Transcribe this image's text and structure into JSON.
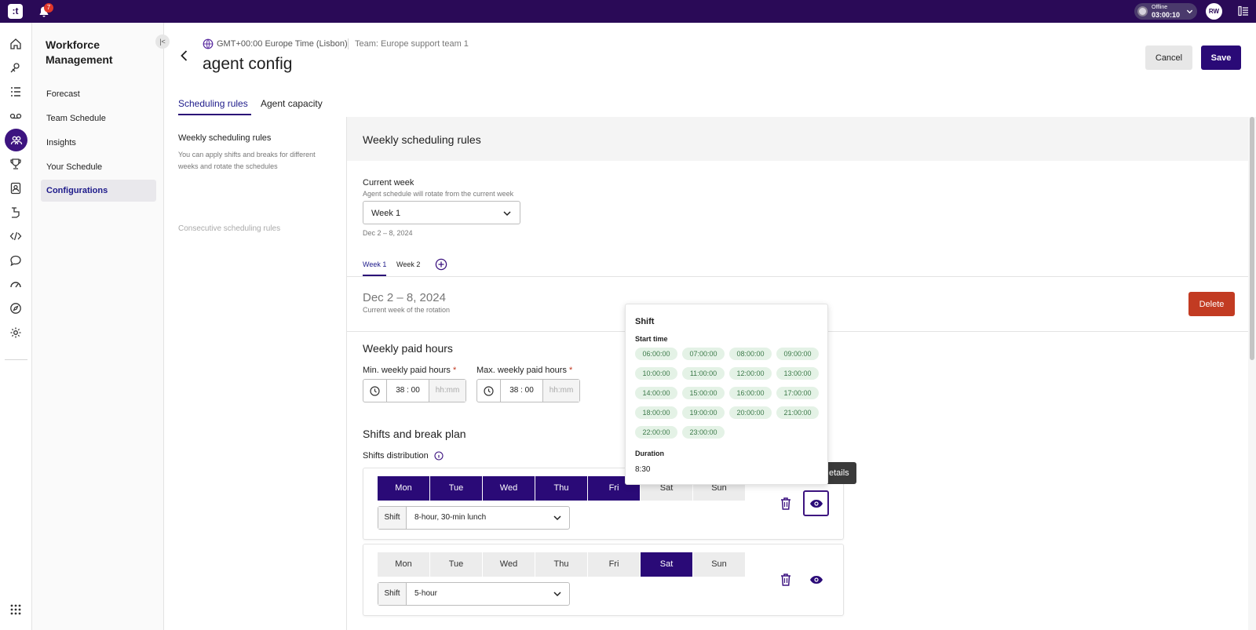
{
  "topbar": {
    "logo_text": ":t",
    "notification_count": "7",
    "status_label": "Offline",
    "status_time": "03:00:10",
    "user_initials": "RW"
  },
  "rail": {
    "icons": [
      "home-icon",
      "routing-icon",
      "list-icon",
      "voicemail-icon",
      "workforce-icon",
      "trophy-icon",
      "contacts-icon",
      "flow-icon",
      "code-icon",
      "chat-icon",
      "dashboard-icon",
      "compass-icon",
      "settings-icon"
    ],
    "active": "workforce-icon"
  },
  "sidebar": {
    "title": "Workforce Management",
    "collapse_glyph": "|<",
    "items": [
      {
        "label": "Forecast"
      },
      {
        "label": "Team Schedule"
      },
      {
        "label": "Insights"
      },
      {
        "label": "Your Schedule"
      },
      {
        "label": "Configurations"
      }
    ],
    "active_item": "Configurations"
  },
  "header": {
    "timezone": "GMT+00:00 Europe Time (Lisbon)",
    "team": "Team: Europe support team 1",
    "title": "agent config",
    "cancel_label": "Cancel",
    "save_label": "Save"
  },
  "tabs": [
    {
      "label": "Scheduling rules",
      "active": true
    },
    {
      "label": "Agent capacity",
      "active": false
    }
  ],
  "left_panel": {
    "weekly_title": "Weekly scheduling rules",
    "weekly_desc": "You can apply shifts and breaks for different weeks and rotate the schedules",
    "consecutive_title": "Consecutive scheduling rules"
  },
  "main": {
    "section_title": "Weekly scheduling rules",
    "current_week": {
      "label": "Current week",
      "sub": "Agent schedule will rotate from the current week",
      "selected": "Week 1",
      "dates": "Dec 2 – 8, 2024"
    },
    "week_tabs": [
      {
        "label": "Week 1",
        "active": true
      },
      {
        "label": "Week 2",
        "active": false
      }
    ],
    "rotation": {
      "title": "Dec 2 – 8, 2024",
      "sub": "Current week of the rotation",
      "delete_label": "Delete"
    },
    "paid_hours": {
      "title": "Weekly paid hours",
      "min_label": "Min. weekly paid hours",
      "min_value": "38 : 00",
      "max_label": "Max. weekly paid hours",
      "max_value": "38 : 00",
      "placeholder": "hh:mm",
      "required_mark": "*"
    },
    "shifts": {
      "title": "Shifts and break plan",
      "distribution_label": "Shifts distribution",
      "shift_field_label": "Shift",
      "cards": [
        {
          "days": [
            {
              "label": "Mon",
              "on": true
            },
            {
              "label": "Tue",
              "on": true
            },
            {
              "label": "Wed",
              "on": true
            },
            {
              "label": "Thu",
              "on": true
            },
            {
              "label": "Fri",
              "on": true
            },
            {
              "label": "Sat",
              "on": false
            },
            {
              "label": "Sun",
              "on": false
            }
          ],
          "shift": "8-hour, 30-min lunch"
        },
        {
          "days": [
            {
              "label": "Mon",
              "on": false
            },
            {
              "label": "Tue",
              "on": false
            },
            {
              "label": "Wed",
              "on": false
            },
            {
              "label": "Thu",
              "on": false
            },
            {
              "label": "Fri",
              "on": false
            },
            {
              "label": "Sat",
              "on": true
            },
            {
              "label": "Sun",
              "on": false
            }
          ],
          "shift": "5-hour"
        }
      ]
    }
  },
  "popover": {
    "title": "Shift",
    "start_time_label": "Start time",
    "start_times": [
      "06:00:00",
      "07:00:00",
      "08:00:00",
      "09:00:00",
      "10:00:00",
      "11:00:00",
      "12:00:00",
      "13:00:00",
      "14:00:00",
      "15:00:00",
      "16:00:00",
      "17:00:00",
      "18:00:00",
      "19:00:00",
      "20:00:00",
      "21:00:00",
      "22:00:00",
      "23:00:00"
    ],
    "duration_label": "Duration",
    "duration_value": "8:30"
  },
  "tooltip": {
    "text": "etails"
  },
  "colors": {
    "brand_dark": "#2a0a57",
    "primary": "#2a0a77",
    "delete": "#c23b22",
    "chip_bg": "#e4f2e6",
    "chip_text": "#3d7a4a"
  }
}
